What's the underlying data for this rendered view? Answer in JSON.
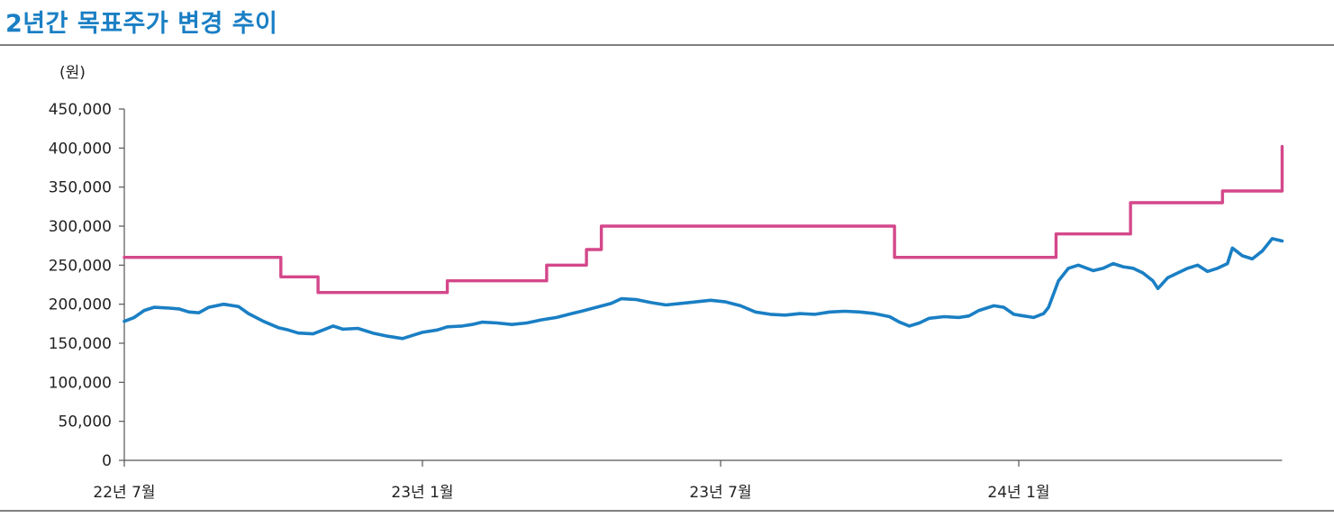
{
  "title": "2년간 목표주가 변경 추이",
  "chart_data": {
    "type": "line",
    "title": "2년간 목표주가 변경 추이",
    "ylabel": "(원)",
    "xlabel": "",
    "ylim": [
      0,
      450000
    ],
    "yticks": [
      0,
      50000,
      100000,
      150000,
      200000,
      250000,
      300000,
      350000,
      400000,
      450000
    ],
    "ytick_labels": [
      "0",
      "50,000",
      "100,000",
      "150,000",
      "200,000",
      "250,000",
      "300,000",
      "350,000",
      "400,000",
      "450,000"
    ],
    "xticks": [
      {
        "x": 0,
        "label": "22년 7월"
      },
      {
        "x": 6,
        "label": "23년 1월"
      },
      {
        "x": 12,
        "label": "23년 7월"
      },
      {
        "x": 18,
        "label": "24년 1월"
      }
    ],
    "xlim": [
      0,
      23.3
    ],
    "grid": false,
    "colors": {
      "price": "#1a7fc4",
      "target": "#d4478a"
    },
    "series": [
      {
        "name": "",
        "key": "target",
        "step": true,
        "points": [
          [
            0,
            260000
          ],
          [
            3.15,
            260000
          ],
          [
            3.15,
            235000
          ],
          [
            3.9,
            235000
          ],
          [
            3.9,
            215000
          ],
          [
            6.5,
            215000
          ],
          [
            6.5,
            230000
          ],
          [
            8.5,
            230000
          ],
          [
            8.5,
            250000
          ],
          [
            9.3,
            250000
          ],
          [
            9.3,
            270000
          ],
          [
            9.6,
            270000
          ],
          [
            9.6,
            300000
          ],
          [
            15.5,
            300000
          ],
          [
            15.5,
            260000
          ],
          [
            18.75,
            260000
          ],
          [
            18.75,
            290000
          ],
          [
            20.25,
            290000
          ],
          [
            20.25,
            330000
          ],
          [
            22.1,
            330000
          ],
          [
            22.1,
            345000
          ],
          [
            23.3,
            345000
          ],
          [
            23.3,
            402000
          ]
        ]
      },
      {
        "name": "",
        "key": "price",
        "step": false,
        "points": [
          [
            0,
            178000
          ],
          [
            0.2,
            183000
          ],
          [
            0.4,
            192000
          ],
          [
            0.6,
            196000
          ],
          [
            0.9,
            195000
          ],
          [
            1.1,
            194000
          ],
          [
            1.3,
            190000
          ],
          [
            1.5,
            189000
          ],
          [
            1.7,
            196000
          ],
          [
            2.0,
            200000
          ],
          [
            2.3,
            197000
          ],
          [
            2.5,
            188000
          ],
          [
            2.8,
            178000
          ],
          [
            3.1,
            170000
          ],
          [
            3.3,
            167000
          ],
          [
            3.5,
            163000
          ],
          [
            3.8,
            162000
          ],
          [
            4.0,
            167000
          ],
          [
            4.2,
            172000
          ],
          [
            4.4,
            168000
          ],
          [
            4.7,
            169000
          ],
          [
            5.0,
            163000
          ],
          [
            5.3,
            159000
          ],
          [
            5.6,
            156000
          ],
          [
            5.8,
            160000
          ],
          [
            6.0,
            164000
          ],
          [
            6.3,
            167000
          ],
          [
            6.5,
            171000
          ],
          [
            6.8,
            172000
          ],
          [
            7.0,
            174000
          ],
          [
            7.2,
            177000
          ],
          [
            7.5,
            176000
          ],
          [
            7.8,
            174000
          ],
          [
            8.1,
            176000
          ],
          [
            8.4,
            180000
          ],
          [
            8.7,
            183000
          ],
          [
            9.0,
            188000
          ],
          [
            9.2,
            191000
          ],
          [
            9.5,
            196000
          ],
          [
            9.8,
            201000
          ],
          [
            10.0,
            207000
          ],
          [
            10.3,
            206000
          ],
          [
            10.6,
            202000
          ],
          [
            10.9,
            199000
          ],
          [
            11.2,
            201000
          ],
          [
            11.5,
            203000
          ],
          [
            11.8,
            205000
          ],
          [
            12.1,
            203000
          ],
          [
            12.4,
            198000
          ],
          [
            12.7,
            190000
          ],
          [
            13.0,
            187000
          ],
          [
            13.3,
            186000
          ],
          [
            13.6,
            188000
          ],
          [
            13.9,
            187000
          ],
          [
            14.2,
            190000
          ],
          [
            14.5,
            191000
          ],
          [
            14.8,
            190000
          ],
          [
            15.1,
            188000
          ],
          [
            15.4,
            184000
          ],
          [
            15.6,
            177000
          ],
          [
            15.8,
            172000
          ],
          [
            16.0,
            176000
          ],
          [
            16.2,
            182000
          ],
          [
            16.5,
            184000
          ],
          [
            16.8,
            183000
          ],
          [
            17.0,
            185000
          ],
          [
            17.2,
            192000
          ],
          [
            17.5,
            198000
          ],
          [
            17.7,
            196000
          ],
          [
            17.9,
            187000
          ],
          [
            18.1,
            185000
          ],
          [
            18.3,
            183000
          ],
          [
            18.5,
            188000
          ],
          [
            18.6,
            196000
          ],
          [
            18.8,
            230000
          ],
          [
            19.0,
            246000
          ],
          [
            19.2,
            250000
          ],
          [
            19.5,
            243000
          ],
          [
            19.7,
            246000
          ],
          [
            19.9,
            252000
          ],
          [
            20.1,
            248000
          ],
          [
            20.3,
            246000
          ],
          [
            20.5,
            240000
          ],
          [
            20.7,
            230000
          ],
          [
            20.8,
            220000
          ],
          [
            21.0,
            234000
          ],
          [
            21.2,
            240000
          ],
          [
            21.4,
            246000
          ],
          [
            21.6,
            250000
          ],
          [
            21.8,
            242000
          ],
          [
            22.0,
            246000
          ],
          [
            22.2,
            252000
          ],
          [
            22.3,
            272000
          ],
          [
            22.5,
            262000
          ],
          [
            22.7,
            258000
          ],
          [
            22.9,
            268000
          ],
          [
            23.1,
            284000
          ],
          [
            23.3,
            281000
          ]
        ]
      }
    ]
  }
}
